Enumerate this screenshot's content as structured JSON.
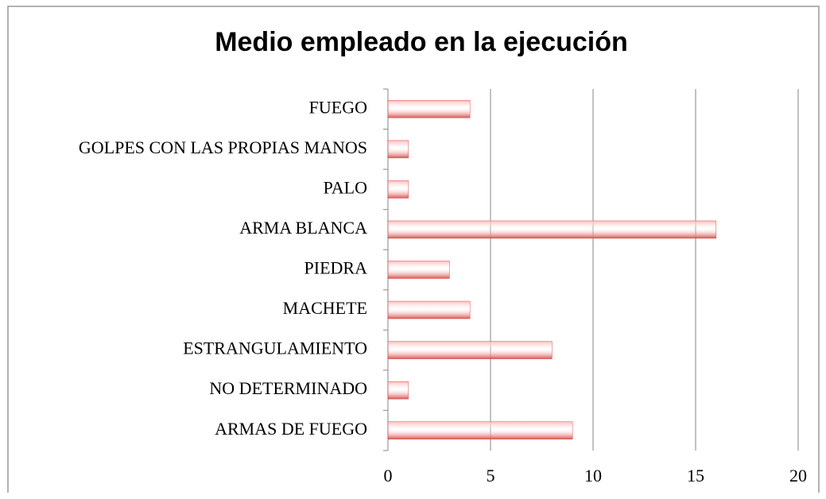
{
  "chart_data": {
    "type": "bar",
    "orientation": "horizontal",
    "title": "Medio empleado en la ejecución",
    "categories": [
      "FUEGO",
      "GOLPES CON LAS PROPIAS MANOS",
      "PALO",
      "ARMA BLANCA",
      "PIEDRA",
      "MACHETE",
      "ESTRANGULAMIENTO",
      "NO DETERMINADO",
      "ARMAS DE FUEGO"
    ],
    "values": [
      4,
      1,
      1,
      16,
      3,
      4,
      8,
      1,
      9
    ],
    "color": "#d9534f",
    "xlim": [
      0,
      20
    ],
    "xticks": [
      0,
      5,
      10,
      15,
      20
    ],
    "grid": true
  }
}
